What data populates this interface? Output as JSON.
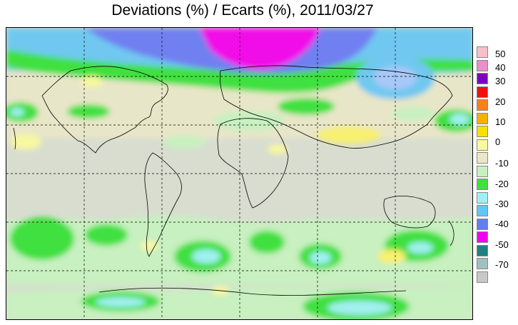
{
  "title": "Deviations (%) / Ecarts (%), 2011/03/27",
  "legend": {
    "swatches": [
      {
        "color": "#f8c0c8"
      },
      {
        "color": "#e890c8"
      },
      {
        "color": "#8000c0"
      },
      {
        "color": "#f01010"
      },
      {
        "color": "#f88020"
      },
      {
        "color": "#f8b000"
      },
      {
        "color": "#f8e000"
      },
      {
        "color": "#f8f8a0"
      },
      {
        "color": "#e8e8c8"
      },
      {
        "color": "#c8f0c0"
      },
      {
        "color": "#40e040"
      },
      {
        "color": "#a0f0f0"
      },
      {
        "color": "#60c8f8"
      },
      {
        "color": "#6080f0"
      },
      {
        "color": "#f000f0"
      },
      {
        "color": "#208080"
      },
      {
        "color": "#a0c0c0"
      },
      {
        "color": "#c8c8c8"
      }
    ],
    "labels": [
      "50",
      "40",
      "30",
      "20",
      "10",
      "0",
      "-10",
      "-20",
      "-30",
      "-40",
      "-50",
      "-70"
    ]
  },
  "map": {
    "background_color": "#d8ddd0",
    "gridlines": "dashed",
    "projection": "equirectangular"
  }
}
